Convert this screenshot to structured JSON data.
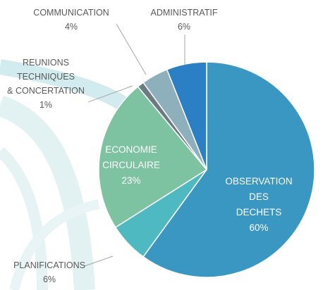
{
  "chart_data": {
    "type": "pie",
    "categories": [
      "OBSERVATION\nDES DECHETS",
      "PLANIFICATIONS",
      "ECONOMIE\nCIRCULAIRE",
      "REUNIONS\nTECHNIQUES\n& CONCERTATION",
      "COMMUNICATION",
      "ADMINISTRATIF"
    ],
    "values": [
      60,
      6,
      23,
      1,
      4,
      6
    ],
    "value_labels": [
      "60%",
      "6%",
      "23%",
      "1%",
      "4%",
      "6%"
    ],
    "colors": [
      "#3a97c1",
      "#4fb9c1",
      "#7dc2a1",
      "#6c7b82",
      "#8db0bc",
      "#2b80c5"
    ]
  }
}
